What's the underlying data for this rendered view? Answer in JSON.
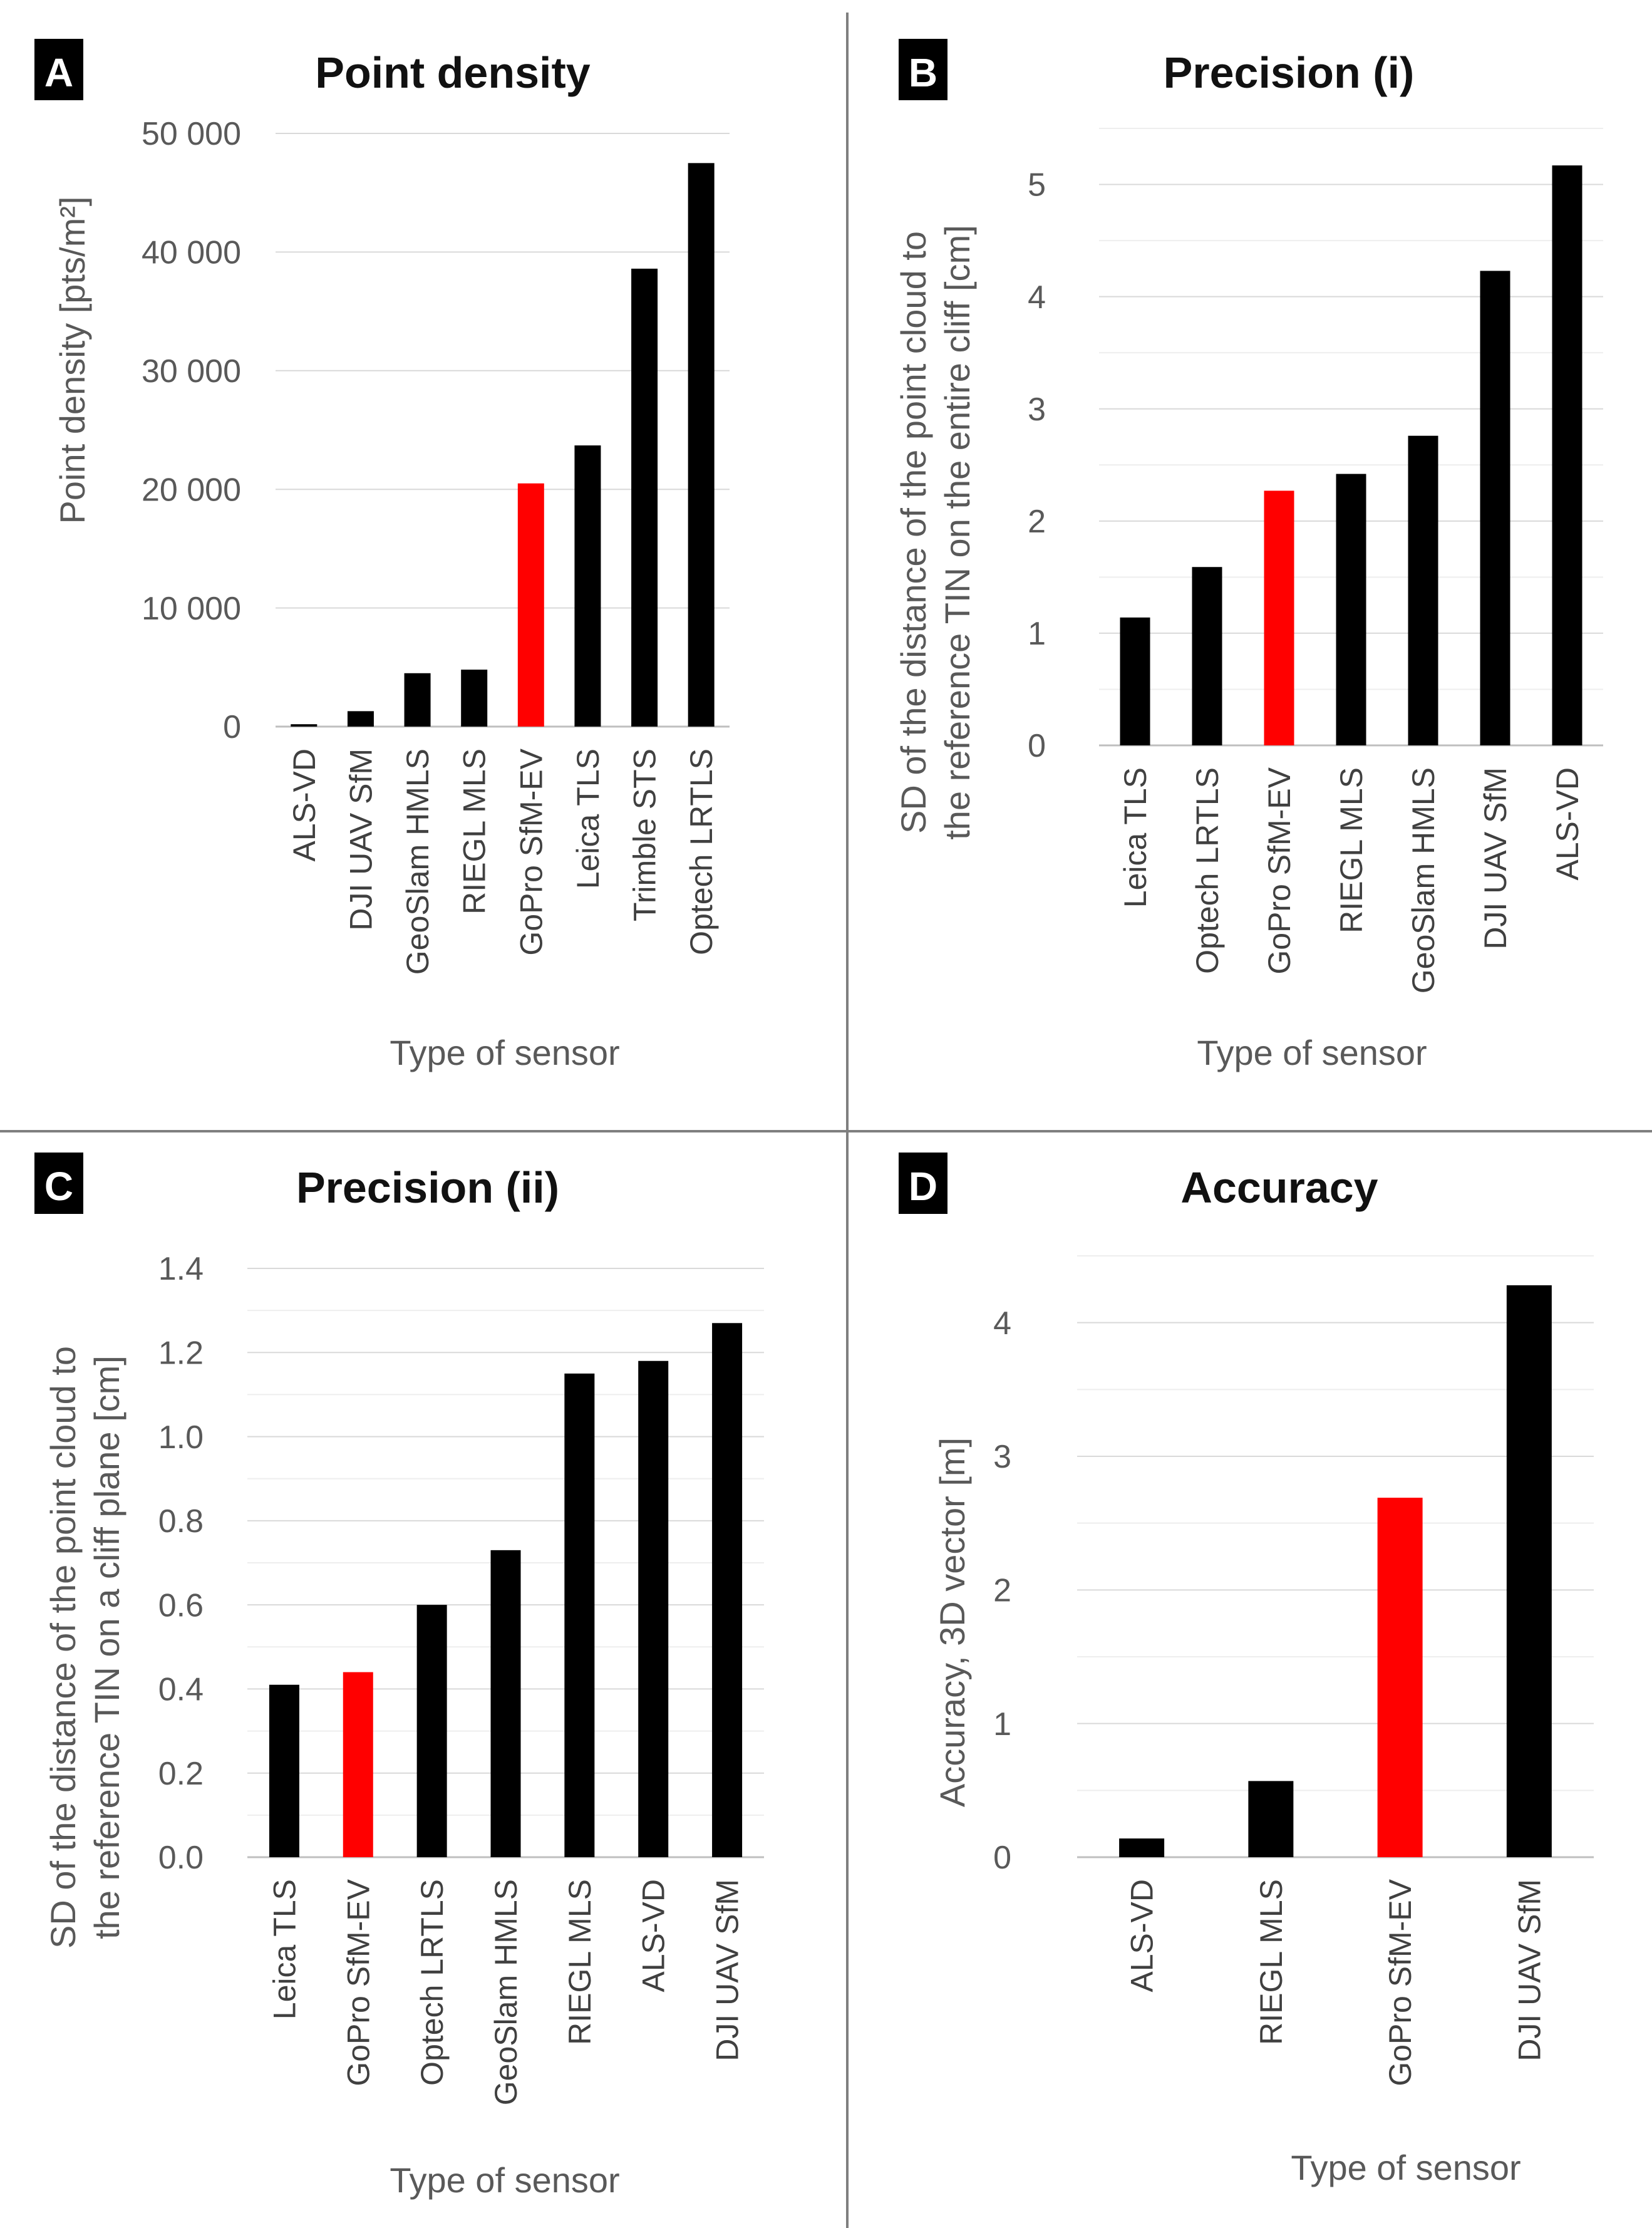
{
  "colors": {
    "bar": "#000000",
    "highlight": "#ff0000",
    "grid": "#d9d9d9",
    "divider": "#7f7f7f"
  },
  "chart_data": [
    {
      "panel": "A",
      "type": "bar",
      "title": "Point density",
      "xlabel": "Type of sensor",
      "ylabel": "Point density [pts/m²]",
      "ylim": [
        0,
        50000
      ],
      "yticks": [
        0,
        10000,
        20000,
        30000,
        40000,
        50000
      ],
      "ytick_labels": [
        "0",
        "10 000",
        "20 000",
        "30 000",
        "40 000",
        "50 000"
      ],
      "categories": [
        "ALS-VD",
        "DJI UAV SfM",
        "GeoSlam HMLS",
        "RIEGL MLS",
        "GoPro SfM-EV",
        "Leica TLS",
        "Trimble STS",
        "Optech LRTLS"
      ],
      "values": [
        200,
        1300,
        4500,
        4800,
        20500,
        23700,
        38600,
        47500
      ],
      "highlight": "GoPro SfM-EV"
    },
    {
      "panel": "B",
      "type": "bar",
      "title": "Precision (i)",
      "xlabel": "Type of sensor",
      "ylabel": "SD of the distance of the point cloud to the reference TIN on the entire cliff [cm]",
      "ylabel_lines": [
        "SD of the distance of the point cloud to",
        "the reference TIN on the entire cliff [cm]"
      ],
      "ylim": [
        0,
        5.5
      ],
      "yticks": [
        0,
        1,
        2,
        3,
        4,
        5
      ],
      "ytick_labels": [
        "0",
        "1",
        "2",
        "3",
        "4",
        "5"
      ],
      "categories": [
        "Leica TLS",
        "Optech LRTLS",
        "GoPro SfM-EV",
        "RIEGL MLS",
        "GeoSlam HMLS",
        "DJI UAV SfM",
        "ALS-VD"
      ],
      "values": [
        1.14,
        1.59,
        2.27,
        2.42,
        2.76,
        4.23,
        5.17
      ],
      "highlight": "GoPro SfM-EV"
    },
    {
      "panel": "C",
      "type": "bar",
      "title": "Precision (ii)",
      "xlabel": "Type of sensor",
      "ylabel": "SD of the distance of the point cloud to the reference TIN on  a cliff plane [cm]",
      "ylabel_lines": [
        "SD of the distance of the point cloud to",
        "the reference TIN on  a cliff plane [cm]"
      ],
      "ylim": [
        0,
        1.4
      ],
      "yticks": [
        0,
        0.2,
        0.4,
        0.6,
        0.8,
        1.0,
        1.2,
        1.4
      ],
      "ytick_labels": [
        "0.0",
        "0.2",
        "0.4",
        "0.6",
        "0.8",
        "1.0",
        "1.2",
        "1.4"
      ],
      "categories": [
        "Leica TLS",
        "GoPro SfM-EV",
        "Optech LRTLS",
        "GeoSlam HMLS",
        "RIEGL MLS",
        "ALS-VD",
        "DJI UAV SfM"
      ],
      "values": [
        0.41,
        0.44,
        0.6,
        0.73,
        1.15,
        1.18,
        1.27
      ],
      "highlight": "GoPro SfM-EV"
    },
    {
      "panel": "D",
      "type": "bar",
      "title": "Accuracy",
      "xlabel": "Type of sensor",
      "ylabel": "Accuracy, 3D vector [m]",
      "ylim": [
        0,
        4.5
      ],
      "yticks": [
        0,
        1,
        2,
        3,
        4
      ],
      "ytick_labels": [
        "0",
        "1",
        "2",
        "3",
        "4"
      ],
      "categories": [
        "ALS-VD",
        "RIEGL MLS",
        "GoPro SfM-EV",
        "DJI UAV SfM"
      ],
      "values": [
        0.14,
        0.57,
        2.69,
        4.28
      ],
      "highlight": "GoPro SfM-EV"
    }
  ]
}
